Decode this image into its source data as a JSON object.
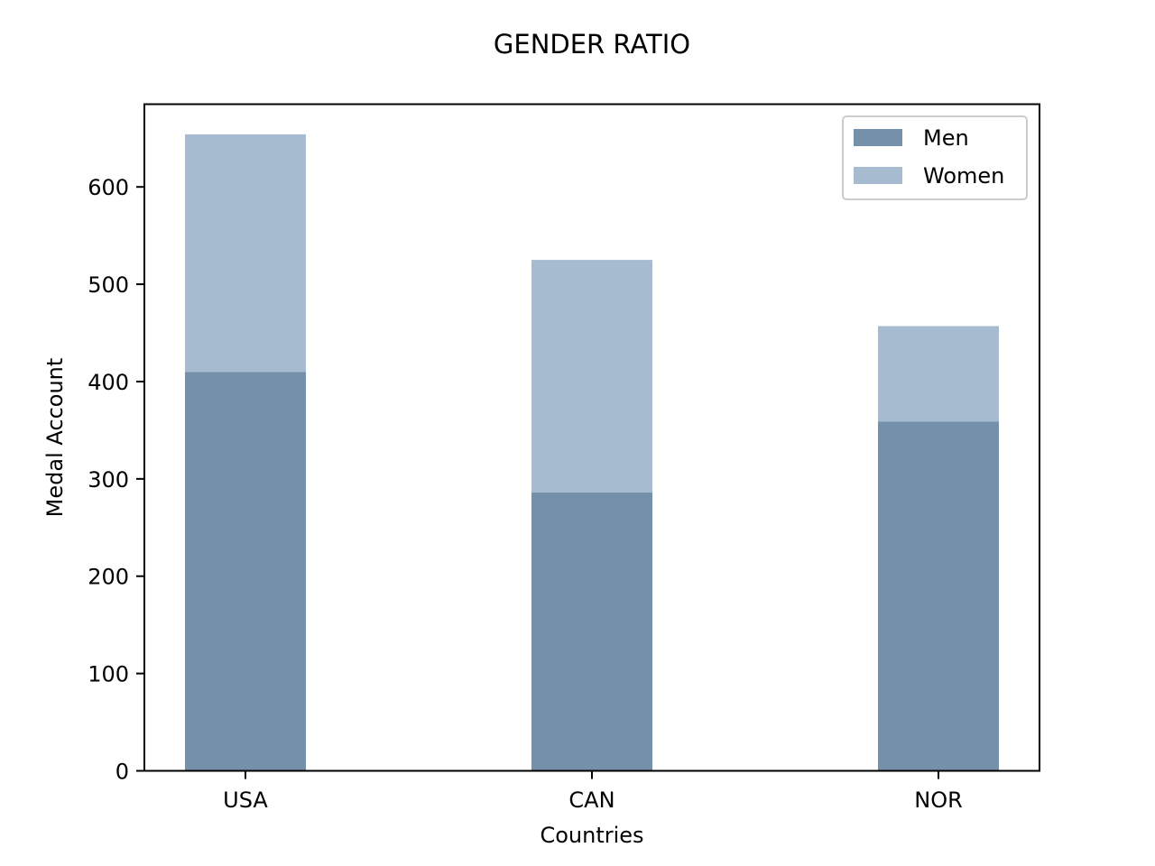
{
  "chart_data": {
    "type": "bar",
    "stacked": true,
    "title": "GENDER RATIO",
    "xlabel": "Countries",
    "ylabel": "Medal Account",
    "categories": [
      "USA",
      "CAN",
      "NOR"
    ],
    "series": [
      {
        "name": "Men",
        "values": [
          410,
          286,
          359
        ],
        "color": "#7490aa"
      },
      {
        "name": "Women",
        "values": [
          244,
          239,
          98
        ],
        "color": "#a7bbd0"
      }
    ],
    "ylim": [
      0,
      685
    ],
    "yticks": [
      0,
      100,
      200,
      300,
      400,
      500,
      600
    ],
    "grid": false,
    "legend_position": "top-right"
  }
}
